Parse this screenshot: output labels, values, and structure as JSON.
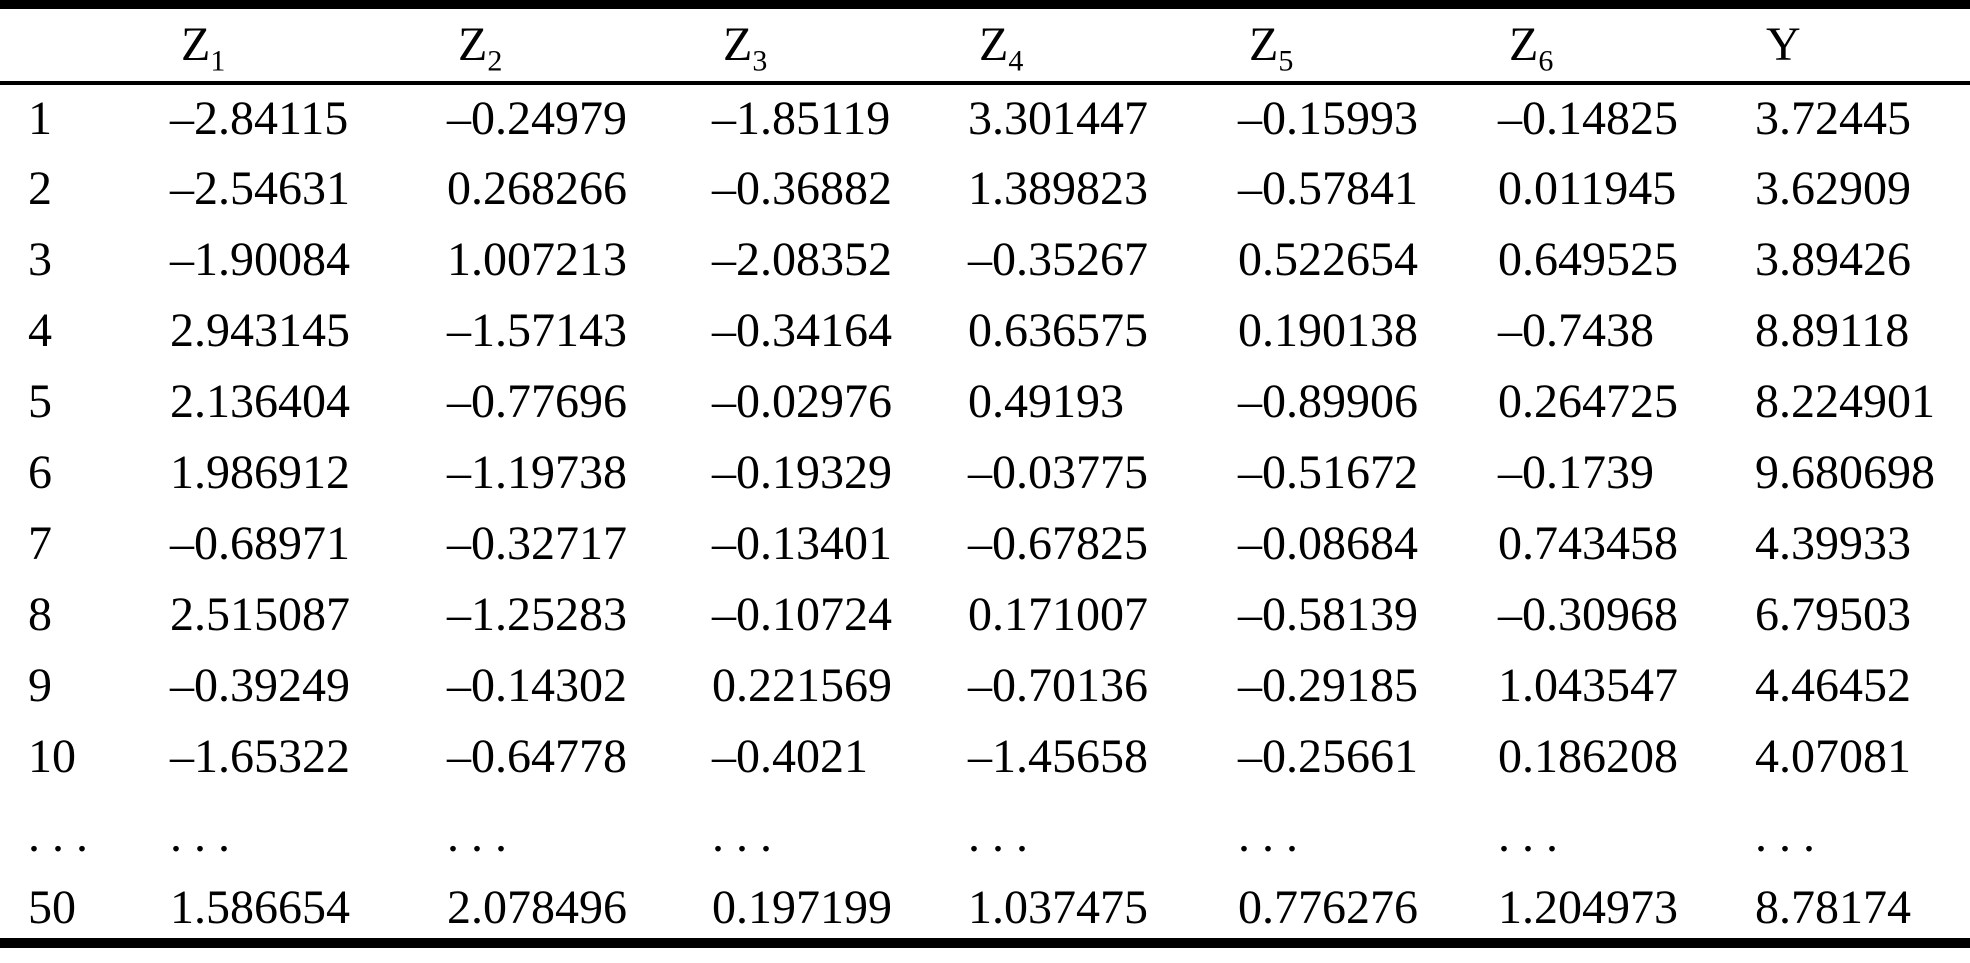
{
  "colors": {
    "text": "#000000",
    "background": "#ffffff",
    "rule": "#000000"
  },
  "table": {
    "row_label_header": "",
    "headers": [
      {
        "base": "Z",
        "sub": "1"
      },
      {
        "base": "Z",
        "sub": "2"
      },
      {
        "base": "Z",
        "sub": "3"
      },
      {
        "base": "Z",
        "sub": "4"
      },
      {
        "base": "Z",
        "sub": "5"
      },
      {
        "base": "Z",
        "sub": "6"
      },
      {
        "base": "Y",
        "sub": ""
      }
    ],
    "rows": [
      {
        "label": "1",
        "values": [
          "–2.84115",
          "–0.24979",
          "–1.85119",
          "3.301447",
          "–0.15993",
          "–0.14825",
          "3.72445"
        ]
      },
      {
        "label": "2",
        "values": [
          "–2.54631",
          "0.268266",
          "–0.36882",
          "1.389823",
          "–0.57841",
          "0.011945",
          "3.62909"
        ]
      },
      {
        "label": "3",
        "values": [
          "–1.90084",
          "1.007213",
          "–2.08352",
          "–0.35267",
          "0.522654",
          "0.649525",
          "3.89426"
        ]
      },
      {
        "label": "4",
        "values": [
          "2.943145",
          "–1.57143",
          "–0.34164",
          "0.636575",
          "0.190138",
          "–0.7438",
          "8.89118"
        ]
      },
      {
        "label": "5",
        "values": [
          "2.136404",
          "–0.77696",
          "–0.02976",
          "0.49193",
          "–0.89906",
          "0.264725",
          "8.224901"
        ]
      },
      {
        "label": "6",
        "values": [
          "1.986912",
          "–1.19738",
          "–0.19329",
          "–0.03775",
          "–0.51672",
          "–0.1739",
          "9.680698"
        ]
      },
      {
        "label": "7",
        "values": [
          "–0.68971",
          "–0.32717",
          "–0.13401",
          "–0.67825",
          "–0.08684",
          "0.743458",
          "4.39933"
        ]
      },
      {
        "label": "8",
        "values": [
          "2.515087",
          "–1.25283",
          "–0.10724",
          "0.171007",
          "–0.58139",
          "–0.30968",
          "6.79503"
        ]
      },
      {
        "label": "9",
        "values": [
          "–0.39249",
          "–0.14302",
          "0.221569",
          "–0.70136",
          "–0.29185",
          "1.043547",
          "4.46452"
        ]
      },
      {
        "label": "10",
        "values": [
          "–1.65322",
          "–0.64778",
          "–0.4021",
          "–1.45658",
          "–0.25661",
          "0.186208",
          "4.07081"
        ]
      },
      {
        "label": ". . .",
        "values": [
          ". . .",
          ". . .",
          ". . .",
          ". . .",
          ". . .",
          ". . .",
          ". . ."
        ],
        "ellipsis": true
      },
      {
        "label": "50",
        "values": [
          "1.586654",
          "2.078496",
          "0.197199",
          "1.037475",
          "0.776276",
          "1.204973",
          "8.78174"
        ],
        "last": true
      }
    ]
  }
}
